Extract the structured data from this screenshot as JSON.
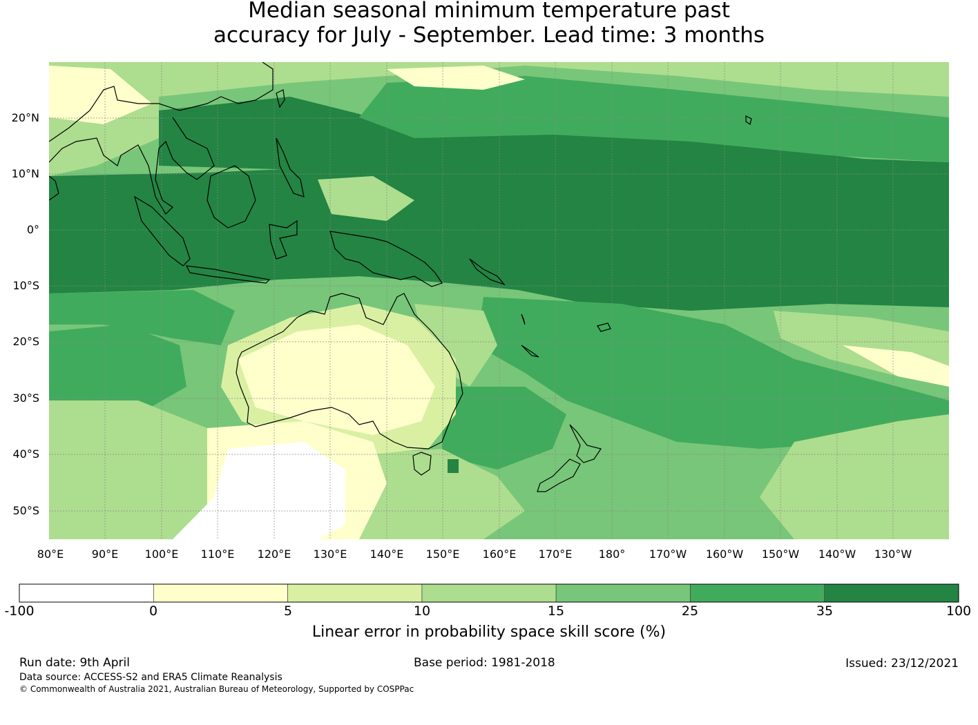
{
  "title": {
    "line1": "Median seasonal minimum temperature past",
    "line2": "accuracy for July - September. Lead time: 3 months"
  },
  "map": {
    "lat_labels": [
      "20°N",
      "10°N",
      "0°",
      "10°S",
      "20°S",
      "30°S",
      "40°S",
      "50°S"
    ],
    "lon_labels": [
      "80°E",
      "90°E",
      "100°E",
      "110°E",
      "120°E",
      "130°E",
      "140°E",
      "150°E",
      "160°E",
      "170°E",
      "180°",
      "170°W",
      "160°W",
      "150°W",
      "140°W",
      "130°W"
    ],
    "lat_range": [
      -55,
      30
    ],
    "lon_range": [
      80,
      240
    ],
    "gridlines": true,
    "coastline_color": "#000000"
  },
  "colorbar": {
    "ticks": [
      "-100",
      "0",
      "5",
      "10",
      "15",
      "25",
      "35",
      "100"
    ],
    "colors": [
      "#ffffff",
      "#ffffcc",
      "#d9f0a3",
      "#addd8e",
      "#78c679",
      "#41ab5d",
      "#238443"
    ],
    "label": "Linear error in probability space skill score (%)"
  },
  "footer": {
    "run_date": "Run date: 9th April",
    "base_period": "Base period: 1981-2018",
    "issued": "Issued: 23/12/2021",
    "data_source": "Data source: ACCESS-S2 and ERA5 Climate Reanalysis",
    "copyright": "© Commonwealth of Australia 2021, Australian Bureau of Meteorology, Supported by COSPPac"
  }
}
